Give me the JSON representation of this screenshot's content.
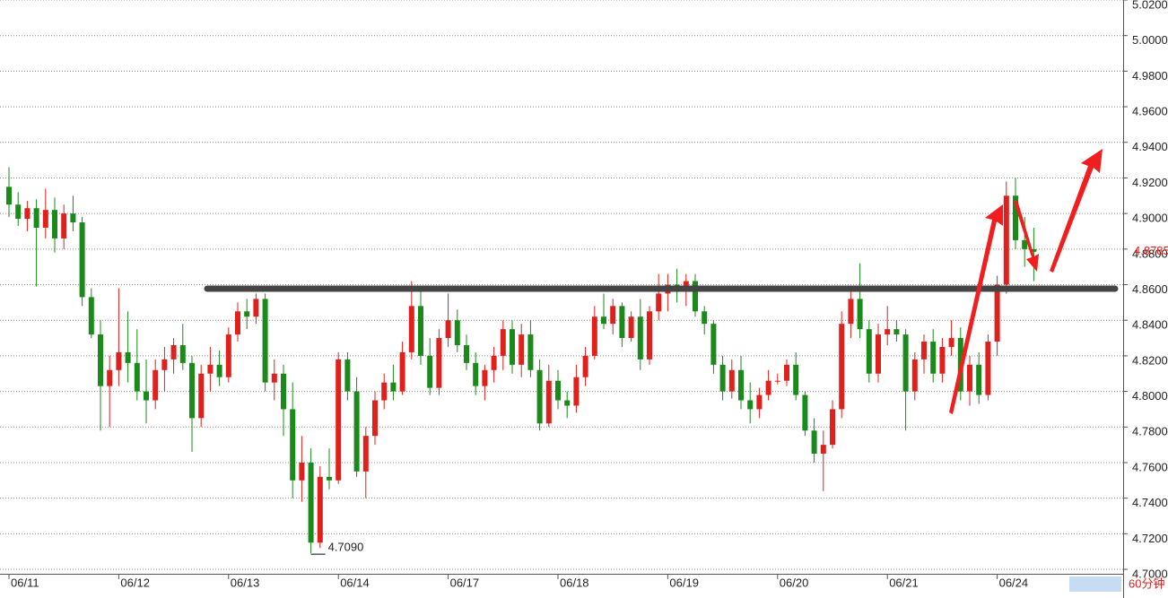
{
  "chart_data": {
    "type": "candlestick",
    "categories": [
      "06/11",
      null,
      null,
      null,
      null,
      null,
      null,
      null,
      null,
      null,
      null,
      null,
      "06/12",
      null,
      null,
      null,
      null,
      null,
      null,
      null,
      null,
      null,
      null,
      null,
      "06/13",
      null,
      null,
      null,
      null,
      null,
      null,
      null,
      null,
      null,
      null,
      null,
      "06/14",
      null,
      null,
      null,
      null,
      null,
      null,
      null,
      null,
      null,
      null,
      null,
      "06/17",
      null,
      null,
      null,
      null,
      null,
      null,
      null,
      null,
      null,
      null,
      null,
      "06/18",
      null,
      null,
      null,
      null,
      null,
      null,
      null,
      null,
      null,
      null,
      null,
      "06/19",
      null,
      null,
      null,
      null,
      null,
      null,
      null,
      null,
      null,
      null,
      null,
      "06/20",
      null,
      null,
      null,
      null,
      null,
      null,
      null,
      null,
      null,
      null,
      null,
      "06/21",
      null,
      null,
      null,
      null,
      null,
      null,
      null,
      null,
      null,
      null,
      null,
      "06/24",
      null,
      null,
      null,
      null
    ],
    "open": [
      4.915,
      4.905,
      4.897,
      4.903,
      4.892,
      4.902,
      4.886,
      4.9,
      4.895,
      4.853,
      4.832,
      4.803,
      4.812,
      4.822,
      4.816,
      4.8,
      4.795,
      4.812,
      4.818,
      4.826,
      4.816,
      4.785,
      4.81,
      4.815,
      4.808,
      4.832,
      4.845,
      4.842,
      4.852,
      4.805,
      4.81,
      4.79,
      4.75,
      4.76,
      4.715,
      4.752,
      4.75,
      4.818,
      4.8,
      4.755,
      4.775,
      4.795,
      4.805,
      4.8,
      4.822,
      4.848,
      4.82,
      4.802,
      4.83,
      4.84,
      4.826,
      4.816,
      4.803,
      4.812,
      4.82,
      4.835,
      4.815,
      4.832,
      4.812,
      4.782,
      4.806,
      4.795,
      4.792,
      4.808,
      4.82,
      4.842,
      4.838,
      4.848,
      4.83,
      4.842,
      4.818,
      4.845,
      4.855,
      4.86,
      4.856,
      4.862,
      4.845,
      4.838,
      4.815,
      4.8,
      4.812,
      4.795,
      4.79,
      4.798,
      4.806,
      4.806,
      4.815,
      4.798,
      4.778,
      4.765,
      4.77,
      4.79,
      4.838,
      4.852,
      4.835,
      4.81,
      4.832,
      4.835,
      4.832,
      4.8,
      4.818,
      4.828,
      4.81,
      4.825,
      4.83,
      4.8,
      4.815,
      4.798,
      4.828,
      4.86,
      4.91,
      4.885,
      4.88
    ],
    "high": [
      4.926,
      4.912,
      4.907,
      4.908,
      4.914,
      4.909,
      4.905,
      4.91,
      4.898,
      4.858,
      4.84,
      4.82,
      4.858,
      4.845,
      4.835,
      4.818,
      4.818,
      4.825,
      4.83,
      4.838,
      4.82,
      4.815,
      4.825,
      4.823,
      4.836,
      4.85,
      4.852,
      4.855,
      4.855,
      4.818,
      4.815,
      4.805,
      4.775,
      4.768,
      4.758,
      4.768,
      4.822,
      4.822,
      4.808,
      4.78,
      4.8,
      4.81,
      4.815,
      4.828,
      4.862,
      4.858,
      4.83,
      4.835,
      4.855,
      4.846,
      4.832,
      4.822,
      4.815,
      4.825,
      4.84,
      4.84,
      4.838,
      4.84,
      4.818,
      4.815,
      4.812,
      4.8,
      4.815,
      4.825,
      4.848,
      4.855,
      4.852,
      4.85,
      4.845,
      4.852,
      4.848,
      4.866,
      4.866,
      4.869,
      4.866,
      4.866,
      4.848,
      4.84,
      4.82,
      4.818,
      4.82,
      4.805,
      4.802,
      4.812,
      4.81,
      4.818,
      4.822,
      4.8,
      4.785,
      4.778,
      4.795,
      4.845,
      4.858,
      4.872,
      4.84,
      4.838,
      4.848,
      4.84,
      4.835,
      4.822,
      4.832,
      4.835,
      4.83,
      4.84,
      4.836,
      4.82,
      4.822,
      4.832,
      4.865,
      4.918,
      4.92,
      4.898,
      4.892
    ],
    "low": [
      4.898,
      4.893,
      4.89,
      4.859,
      4.886,
      4.878,
      4.88,
      4.89,
      4.848,
      4.83,
      4.778,
      4.78,
      4.803,
      4.805,
      4.795,
      4.782,
      4.79,
      4.8,
      4.81,
      4.812,
      4.766,
      4.78,
      4.8,
      4.803,
      4.805,
      4.828,
      4.835,
      4.838,
      4.8,
      4.795,
      4.775,
      4.74,
      4.738,
      4.709,
      4.712,
      4.745,
      4.748,
      4.795,
      4.752,
      4.74,
      4.77,
      4.79,
      4.795,
      4.798,
      4.818,
      4.815,
      4.798,
      4.798,
      4.825,
      4.822,
      4.812,
      4.798,
      4.795,
      4.805,
      4.812,
      4.81,
      4.808,
      4.808,
      4.778,
      4.78,
      4.79,
      4.785,
      4.788,
      4.803,
      4.818,
      4.835,
      4.832,
      4.825,
      4.828,
      4.812,
      4.815,
      4.84,
      4.845,
      4.85,
      4.848,
      4.842,
      4.832,
      4.81,
      4.795,
      4.796,
      4.79,
      4.782,
      4.785,
      4.795,
      4.804,
      4.803,
      4.795,
      4.775,
      4.76,
      4.744,
      4.768,
      4.785,
      4.83,
      4.83,
      4.805,
      4.805,
      4.826,
      4.828,
      4.778,
      4.795,
      4.81,
      4.805,
      4.805,
      4.82,
      4.795,
      4.792,
      4.793,
      4.795,
      4.82,
      4.855,
      4.88,
      4.87,
      4.862
    ],
    "close": [
      4.905,
      4.897,
      4.903,
      4.892,
      4.902,
      4.886,
      4.9,
      4.895,
      4.853,
      4.832,
      4.803,
      4.812,
      4.822,
      4.816,
      4.8,
      4.795,
      4.812,
      4.818,
      4.826,
      4.816,
      4.785,
      4.81,
      4.815,
      4.808,
      4.832,
      4.845,
      4.842,
      4.852,
      4.805,
      4.81,
      4.79,
      4.75,
      4.76,
      4.715,
      4.752,
      4.75,
      4.818,
      4.8,
      4.755,
      4.775,
      4.795,
      4.805,
      4.8,
      4.822,
      4.848,
      4.82,
      4.802,
      4.83,
      4.84,
      4.826,
      4.816,
      4.803,
      4.812,
      4.82,
      4.835,
      4.815,
      4.832,
      4.812,
      4.782,
      4.806,
      4.795,
      4.792,
      4.808,
      4.82,
      4.842,
      4.838,
      4.848,
      4.83,
      4.842,
      4.818,
      4.845,
      4.855,
      4.86,
      4.856,
      4.862,
      4.845,
      4.838,
      4.815,
      4.8,
      4.812,
      4.795,
      4.79,
      4.798,
      4.806,
      4.806,
      4.815,
      4.798,
      4.778,
      4.765,
      4.77,
      4.79,
      4.838,
      4.852,
      4.835,
      4.81,
      4.832,
      4.835,
      4.832,
      4.8,
      4.818,
      4.828,
      4.81,
      4.825,
      4.83,
      4.8,
      4.815,
      4.798,
      4.828,
      4.86,
      4.91,
      4.885,
      4.88,
      4.8785
    ],
    "up_color": "#e0201c",
    "down_color": "#1a8a1a",
    "ylim": [
      4.6975,
      5.02
    ],
    "yticks": [
      {
        "value": 4.7,
        "label": "4.7000"
      },
      {
        "value": 4.72,
        "label": "4.7200"
      },
      {
        "value": 4.74,
        "label": "4.7400"
      },
      {
        "value": 4.76,
        "label": "4.7600"
      },
      {
        "value": 4.78,
        "label": "4.7800"
      },
      {
        "value": 4.8,
        "label": "4.8000"
      },
      {
        "value": 4.82,
        "label": "4.8200"
      },
      {
        "value": 4.84,
        "label": "4.8400"
      },
      {
        "value": 4.86,
        "label": "4.8600"
      },
      {
        "value": 4.88,
        "label": "4.8800"
      },
      {
        "value": 4.9,
        "label": "4.9000"
      },
      {
        "value": 4.92,
        "label": "4.9200"
      },
      {
        "value": 4.94,
        "label": "4.9400"
      },
      {
        "value": 4.96,
        "label": "4.9600"
      },
      {
        "value": 4.98,
        "label": "4.9800"
      },
      {
        "value": 5.0,
        "label": "5.0000"
      },
      {
        "value": 5.02,
        "label": "5.0200"
      }
    ],
    "grid": true,
    "last_price": 4.8785,
    "low_annotation": {
      "value": 4.709,
      "label": "4.7090"
    },
    "period": "60分钟"
  }
}
